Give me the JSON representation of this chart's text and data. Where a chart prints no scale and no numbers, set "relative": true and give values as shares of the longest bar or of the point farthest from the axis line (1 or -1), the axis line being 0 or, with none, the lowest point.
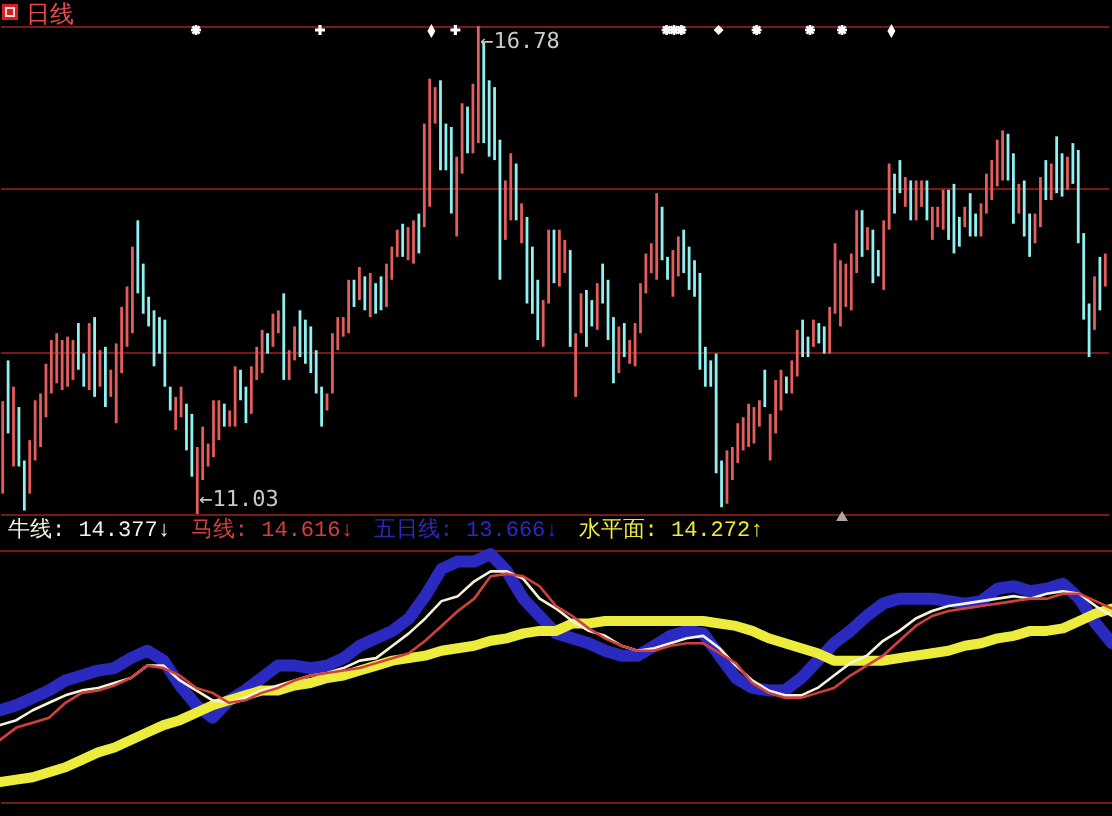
{
  "chart_data": [
    {
      "type": "candlestick",
      "title": "日线",
      "categories": [
        null,
        null,
        null,
        null,
        null,
        null,
        null,
        null,
        null,
        null,
        null,
        null,
        null,
        null,
        null,
        null,
        null,
        null,
        null,
        null,
        null,
        null,
        null,
        null,
        null,
        null,
        null,
        null,
        null,
        null,
        null,
        null,
        null,
        null,
        null,
        null,
        null,
        null,
        null,
        null,
        null,
        null,
        null,
        null,
        null,
        null,
        null,
        null,
        null,
        null,
        null,
        null,
        null,
        null,
        null,
        null,
        null,
        null,
        null,
        null,
        null,
        null,
        null,
        null,
        null,
        null,
        null,
        null,
        null,
        null,
        null,
        null,
        null,
        null,
        null,
        null,
        null,
        null,
        null,
        null,
        null,
        null,
        null,
        null,
        null,
        null,
        null,
        null,
        null,
        null,
        null,
        null,
        null,
        null,
        null,
        null,
        null,
        null,
        null,
        null,
        null,
        null,
        null,
        null,
        null,
        null,
        null,
        null,
        null,
        null,
        null,
        null,
        null,
        null,
        null,
        null,
        null,
        null,
        null,
        null,
        null,
        null,
        null,
        null,
        null,
        null,
        null,
        null,
        null,
        null,
        null,
        null,
        null,
        null,
        null,
        null,
        null,
        null,
        null,
        null,
        null,
        null,
        null,
        null,
        null,
        null,
        null,
        null,
        null,
        null,
        null,
        null,
        null,
        null,
        null,
        null,
        null,
        null,
        null,
        null,
        null,
        null,
        null,
        null,
        null,
        null,
        null,
        null,
        null,
        null,
        null,
        null,
        null,
        null,
        null,
        null,
        null,
        null,
        null,
        null,
        null,
        null,
        null,
        null,
        null,
        null,
        null,
        null,
        null,
        null,
        null,
        null,
        null,
        null,
        null,
        null,
        null,
        null,
        null,
        null,
        null,
        null,
        null,
        null,
        null
      ],
      "ohlc": [
        [
          11.27,
          12.36,
          11.27,
          12.36
        ],
        [
          12.84,
          12.84,
          11.98,
          11.98
        ],
        [
          11.59,
          12.53,
          11.59,
          12.53
        ],
        [
          12.29,
          12.29,
          11.59,
          11.59
        ],
        [
          11.66,
          11.66,
          11.07,
          11.07
        ],
        [
          11.27,
          11.9,
          11.27,
          11.9
        ],
        [
          11.66,
          12.37,
          11.66,
          12.37
        ],
        [
          11.82,
          12.45,
          11.82,
          12.45
        ],
        [
          12.17,
          12.8,
          12.17,
          12.8
        ],
        [
          12.45,
          13.08,
          12.45,
          13.08
        ],
        [
          12.57,
          13.16,
          12.57,
          13.16
        ],
        [
          12.49,
          13.08,
          12.49,
          13.08
        ],
        [
          12.53,
          13.12,
          12.53,
          13.12
        ],
        [
          12.61,
          13.08,
          12.61,
          13.08
        ],
        [
          13.28,
          13.28,
          12.73,
          12.73
        ],
        [
          12.92,
          12.92,
          12.53,
          12.53
        ],
        [
          12.49,
          13.28,
          12.49,
          13.28
        ],
        [
          13.35,
          13.35,
          12.41,
          12.41
        ],
        [
          12.53,
          12.96,
          12.53,
          12.96
        ],
        [
          13.0,
          13.0,
          12.29,
          12.29
        ],
        [
          12.41,
          12.73,
          12.41,
          12.73
        ],
        [
          12.1,
          13.04,
          12.1,
          13.04
        ],
        [
          12.69,
          13.47,
          12.69,
          13.47
        ],
        [
          13.0,
          13.71,
          13.0,
          13.71
        ],
        [
          13.16,
          14.18,
          13.16,
          14.18
        ],
        [
          14.49,
          14.49,
          13.63,
          13.63
        ],
        [
          13.98,
          13.98,
          13.39,
          13.39
        ],
        [
          13.59,
          13.59,
          13.24,
          13.24
        ],
        [
          13.43,
          13.43,
          12.77,
          12.77
        ],
        [
          13.35,
          13.35,
          12.92,
          12.92
        ],
        [
          13.32,
          13.32,
          12.53,
          12.53
        ],
        [
          12.53,
          12.53,
          12.25,
          12.25
        ],
        [
          12.02,
          12.41,
          12.02,
          12.41
        ],
        [
          12.17,
          12.53,
          12.17,
          12.53
        ],
        [
          12.33,
          12.33,
          11.78,
          11.78
        ],
        [
          12.21,
          12.21,
          11.47,
          11.47
        ],
        [
          11.03,
          11.82,
          11.03,
          11.82
        ],
        [
          11.43,
          12.06,
          11.43,
          12.06
        ],
        [
          11.59,
          11.86,
          11.59,
          11.86
        ],
        [
          11.7,
          12.37,
          11.7,
          12.37
        ],
        [
          11.9,
          12.37,
          11.9,
          12.37
        ],
        [
          12.33,
          12.33,
          12.06,
          12.06
        ],
        [
          12.06,
          12.25,
          12.06,
          12.25
        ],
        [
          12.06,
          12.77,
          12.06,
          12.77
        ],
        [
          12.73,
          12.73,
          12.37,
          12.37
        ],
        [
          12.53,
          12.53,
          12.1,
          12.1
        ],
        [
          12.21,
          12.77,
          12.21,
          12.77
        ],
        [
          12.61,
          13.0,
          12.61,
          13.0
        ],
        [
          12.69,
          13.2,
          12.69,
          13.2
        ],
        [
          13.16,
          13.16,
          12.92,
          12.92
        ],
        [
          13.0,
          13.39,
          13.0,
          13.39
        ],
        [
          13.16,
          13.43,
          13.16,
          13.43
        ],
        [
          13.63,
          13.63,
          12.61,
          12.61
        ],
        [
          12.61,
          12.96,
          12.61,
          12.96
        ],
        [
          12.84,
          13.24,
          12.84,
          13.24
        ],
        [
          13.43,
          13.43,
          12.88,
          12.88
        ],
        [
          13.32,
          13.32,
          12.8,
          12.8
        ],
        [
          13.24,
          13.24,
          12.69,
          12.69
        ],
        [
          12.96,
          12.96,
          12.45,
          12.45
        ],
        [
          12.53,
          12.53,
          12.06,
          12.06
        ],
        [
          12.25,
          12.45,
          12.25,
          12.45
        ],
        [
          12.45,
          13.16,
          12.45,
          13.16
        ],
        [
          12.96,
          13.35,
          12.96,
          13.35
        ],
        [
          13.12,
          13.35,
          13.12,
          13.35
        ],
        [
          13.16,
          13.79,
          13.16,
          13.79
        ],
        [
          13.79,
          13.79,
          13.47,
          13.47
        ],
        [
          13.55,
          13.94,
          13.55,
          13.94
        ],
        [
          13.83,
          13.83,
          13.43,
          13.43
        ],
        [
          13.35,
          13.87,
          13.35,
          13.87
        ],
        [
          13.75,
          13.75,
          13.39,
          13.39
        ],
        [
          13.83,
          13.83,
          13.43,
          13.43
        ],
        [
          13.47,
          13.98,
          13.47,
          13.98
        ],
        [
          13.79,
          14.18,
          13.79,
          14.18
        ],
        [
          14.06,
          14.38,
          14.06,
          14.38
        ],
        [
          14.45,
          14.45,
          14.06,
          14.06
        ],
        [
          14.02,
          14.41,
          14.02,
          14.41
        ],
        [
          13.98,
          14.49,
          13.98,
          14.49
        ],
        [
          14.57,
          14.57,
          14.1,
          14.1
        ],
        [
          14.41,
          15.63,
          14.41,
          15.63
        ],
        [
          14.65,
          16.16,
          14.65,
          16.16
        ],
        [
          15.63,
          16.06,
          15.63,
          16.06
        ],
        [
          16.14,
          16.14,
          15.08,
          15.08
        ],
        [
          15.63,
          15.63,
          15.08,
          15.08
        ],
        [
          15.59,
          15.59,
          14.57,
          14.57
        ],
        [
          14.3,
          15.24,
          14.3,
          15.24
        ],
        [
          15.04,
          15.87,
          15.04,
          15.87
        ],
        [
          15.83,
          15.83,
          15.28,
          15.28
        ],
        [
          15.28,
          16.1,
          15.28,
          16.1
        ],
        [
          15.4,
          16.78,
          15.4,
          16.78
        ],
        [
          16.58,
          16.58,
          15.4,
          15.4
        ],
        [
          16.14,
          16.14,
          15.24,
          15.24
        ],
        [
          16.06,
          16.06,
          15.2,
          15.2
        ],
        [
          15.44,
          15.44,
          13.79,
          13.79
        ],
        [
          14.26,
          14.96,
          14.26,
          14.96
        ],
        [
          14.49,
          15.28,
          14.49,
          15.28
        ],
        [
          15.16,
          15.16,
          14.49,
          14.49
        ],
        [
          14.22,
          14.69,
          14.22,
          14.69
        ],
        [
          14.53,
          14.53,
          13.51,
          13.51
        ],
        [
          14.18,
          14.18,
          13.39,
          13.39
        ],
        [
          13.79,
          13.79,
          13.08,
          13.08
        ],
        [
          13.0,
          13.55,
          13.0,
          13.55
        ],
        [
          13.51,
          14.38,
          13.51,
          14.38
        ],
        [
          14.38,
          14.38,
          13.75,
          13.75
        ],
        [
          13.71,
          14.38,
          13.71,
          14.38
        ],
        [
          13.87,
          14.26,
          13.87,
          14.26
        ],
        [
          14.14,
          14.14,
          13.0,
          13.0
        ],
        [
          12.41,
          13.16,
          12.41,
          13.16
        ],
        [
          13.16,
          13.63,
          13.16,
          13.63
        ],
        [
          13.67,
          13.67,
          13.0,
          13.0
        ],
        [
          13.55,
          13.55,
          13.24,
          13.24
        ],
        [
          13.2,
          13.75,
          13.2,
          13.75
        ],
        [
          13.98,
          13.98,
          13.51,
          13.51
        ],
        [
          13.79,
          13.79,
          13.08,
          13.08
        ],
        [
          13.35,
          13.35,
          12.57,
          12.57
        ],
        [
          12.69,
          13.24,
          12.69,
          13.24
        ],
        [
          13.28,
          13.28,
          12.88,
          12.88
        ],
        [
          12.8,
          13.08,
          12.8,
          13.08
        ],
        [
          12.77,
          13.28,
          12.77,
          13.28
        ],
        [
          13.16,
          13.75,
          13.16,
          13.75
        ],
        [
          13.63,
          14.1,
          13.63,
          14.1
        ],
        [
          13.87,
          14.22,
          13.87,
          14.22
        ],
        [
          13.79,
          14.81,
          13.79,
          14.81
        ],
        [
          14.65,
          14.65,
          14.02,
          14.02
        ],
        [
          14.06,
          14.06,
          13.79,
          13.79
        ],
        [
          13.59,
          14.14,
          13.59,
          14.14
        ],
        [
          13.83,
          14.3,
          13.83,
          14.3
        ],
        [
          14.38,
          14.38,
          13.87,
          13.87
        ],
        [
          14.18,
          14.18,
          13.67,
          13.67
        ],
        [
          14.02,
          14.02,
          13.59,
          13.59
        ],
        [
          13.87,
          13.87,
          12.73,
          12.73
        ],
        [
          13.0,
          13.0,
          12.53,
          12.53
        ],
        [
          12.84,
          12.84,
          12.53,
          12.53
        ],
        [
          12.92,
          12.92,
          11.51,
          11.51
        ],
        [
          11.66,
          11.66,
          11.11,
          11.11
        ],
        [
          11.15,
          11.78,
          11.15,
          11.78
        ],
        [
          11.43,
          11.82,
          11.43,
          11.82
        ],
        [
          11.63,
          12.1,
          11.63,
          12.1
        ],
        [
          11.78,
          12.17,
          11.78,
          12.17
        ],
        [
          11.82,
          12.33,
          11.82,
          12.33
        ],
        [
          11.86,
          12.29,
          11.86,
          12.29
        ],
        [
          12.06,
          12.37,
          12.06,
          12.37
        ],
        [
          12.73,
          12.73,
          12.29,
          12.29
        ],
        [
          11.66,
          12.21,
          11.66,
          12.21
        ],
        [
          11.98,
          12.61,
          11.98,
          12.61
        ],
        [
          12.25,
          12.73,
          12.25,
          12.73
        ],
        [
          12.65,
          12.65,
          12.45,
          12.45
        ],
        [
          12.45,
          12.84,
          12.45,
          12.84
        ],
        [
          12.65,
          13.2,
          12.65,
          13.2
        ],
        [
          13.32,
          13.32,
          12.88,
          12.88
        ],
        [
          13.12,
          13.12,
          12.88,
          12.88
        ],
        [
          13.0,
          13.32,
          13.0,
          13.32
        ],
        [
          13.28,
          13.28,
          13.04,
          13.04
        ],
        [
          13.24,
          13.24,
          12.92,
          12.92
        ],
        [
          12.92,
          13.47,
          12.92,
          13.47
        ],
        [
          13.39,
          14.22,
          13.39,
          14.22
        ],
        [
          13.24,
          14.02,
          13.24,
          14.02
        ],
        [
          13.47,
          13.98,
          13.47,
          13.98
        ],
        [
          13.43,
          14.1,
          13.43,
          14.1
        ],
        [
          13.87,
          14.61,
          13.87,
          14.61
        ],
        [
          14.61,
          14.61,
          14.06,
          14.06
        ],
        [
          14.14,
          14.41,
          14.14,
          14.41
        ],
        [
          14.38,
          14.38,
          13.75,
          13.75
        ],
        [
          14.14,
          14.14,
          13.83,
          13.83
        ],
        [
          13.67,
          14.49,
          13.67,
          14.49
        ],
        [
          14.38,
          15.16,
          14.38,
          15.16
        ],
        [
          15.04,
          15.04,
          14.57,
          14.57
        ],
        [
          15.2,
          15.2,
          14.81,
          14.81
        ],
        [
          14.65,
          15.0,
          14.65,
          15.0
        ],
        [
          14.96,
          14.96,
          14.49,
          14.49
        ],
        [
          14.49,
          14.96,
          14.49,
          14.96
        ],
        [
          14.65,
          14.96,
          14.65,
          14.96
        ],
        [
          14.96,
          14.96,
          14.49,
          14.49
        ],
        [
          14.26,
          14.65,
          14.26,
          14.65
        ],
        [
          14.41,
          14.65,
          14.41,
          14.65
        ],
        [
          14.38,
          14.85,
          14.38,
          14.85
        ],
        [
          14.85,
          14.85,
          14.26,
          14.26
        ],
        [
          14.92,
          14.92,
          14.1,
          14.1
        ],
        [
          14.53,
          14.53,
          14.18,
          14.18
        ],
        [
          14.41,
          14.65,
          14.41,
          14.65
        ],
        [
          14.81,
          14.81,
          14.3,
          14.3
        ],
        [
          14.57,
          14.57,
          14.3,
          14.3
        ],
        [
          14.3,
          14.69,
          14.3,
          14.69
        ],
        [
          14.57,
          15.04,
          14.57,
          15.04
        ],
        [
          14.73,
          15.2,
          14.73,
          15.2
        ],
        [
          14.89,
          15.44,
          14.89,
          15.44
        ],
        [
          14.96,
          15.55,
          14.96,
          15.55
        ],
        [
          15.51,
          15.51,
          14.96,
          14.96
        ],
        [
          15.28,
          15.28,
          14.45,
          14.45
        ],
        [
          14.57,
          14.92,
          14.57,
          14.92
        ],
        [
          14.96,
          14.96,
          14.3,
          14.3
        ],
        [
          14.57,
          14.57,
          14.06,
          14.06
        ],
        [
          14.22,
          14.57,
          14.22,
          14.57
        ],
        [
          14.41,
          15.0,
          14.41,
          15.0
        ],
        [
          15.2,
          15.2,
          14.73,
          14.73
        ],
        [
          14.73,
          15.16,
          14.73,
          15.16
        ],
        [
          15.48,
          15.48,
          14.81,
          14.81
        ],
        [
          15.28,
          15.28,
          14.77,
          14.77
        ],
        [
          14.85,
          15.24,
          14.85,
          15.24
        ],
        [
          15.4,
          15.4,
          14.92,
          14.92
        ],
        [
          15.32,
          15.32,
          14.22,
          14.22
        ],
        [
          14.34,
          14.34,
          13.32,
          13.32
        ],
        [
          13.51,
          13.51,
          12.88,
          12.88
        ],
        [
          13.2,
          13.83,
          13.2,
          13.83
        ],
        [
          14.06,
          14.06,
          13.43,
          13.43
        ],
        [
          13.71,
          14.1,
          13.71,
          14.1
        ]
      ],
      "colors": [
        "#e35d5d",
        "#8ef2f2",
        "#e35d5d",
        "#8ef2f2",
        "#8ef2f2",
        "#e35d5d",
        "#e35d5d",
        "#e35d5d",
        "#e35d5d",
        "#e35d5d",
        "#e35d5d",
        "#e35d5d",
        "#e35d5d",
        "#e35d5d",
        "#8ef2f2",
        "#8ef2f2",
        "#e35d5d",
        "#8ef2f2",
        "#e35d5d",
        "#8ef2f2",
        "#e35d5d",
        "#e35d5d",
        "#e35d5d",
        "#e35d5d",
        "#e35d5d",
        "#8ef2f2",
        "#8ef2f2",
        "#8ef2f2",
        "#8ef2f2",
        "#8ef2f2",
        "#8ef2f2",
        "#8ef2f2",
        "#e35d5d",
        "#e35d5d",
        "#8ef2f2",
        "#8ef2f2",
        "#e35d5d",
        "#e35d5d",
        "#e35d5d",
        "#e35d5d",
        "#e35d5d",
        "#8ef2f2",
        "#e35d5d",
        "#e35d5d",
        "#8ef2f2",
        "#8ef2f2",
        "#e35d5d",
        "#e35d5d",
        "#e35d5d",
        "#8ef2f2",
        "#e35d5d",
        "#e35d5d",
        "#8ef2f2",
        "#e35d5d",
        "#e35d5d",
        "#8ef2f2",
        "#8ef2f2",
        "#8ef2f2",
        "#8ef2f2",
        "#8ef2f2",
        "#e35d5d",
        "#e35d5d",
        "#e35d5d",
        "#e35d5d",
        "#e35d5d",
        "#8ef2f2",
        "#e35d5d",
        "#8ef2f2",
        "#e35d5d",
        "#8ef2f2",
        "#8ef2f2",
        "#e35d5d",
        "#e35d5d",
        "#e35d5d",
        "#8ef2f2",
        "#e35d5d",
        "#e35d5d",
        "#8ef2f2",
        "#e35d5d",
        "#e35d5d",
        "#e35d5d",
        "#8ef2f2",
        "#8ef2f2",
        "#8ef2f2",
        "#e35d5d",
        "#e35d5d",
        "#8ef2f2",
        "#e35d5d",
        "#e35d5d",
        "#8ef2f2",
        "#8ef2f2",
        "#8ef2f2",
        "#8ef2f2",
        "#e35d5d",
        "#e35d5d",
        "#8ef2f2",
        "#e35d5d",
        "#8ef2f2",
        "#8ef2f2",
        "#8ef2f2",
        "#e35d5d",
        "#e35d5d",
        "#8ef2f2",
        "#e35d5d",
        "#e35d5d",
        "#8ef2f2",
        "#e35d5d",
        "#e35d5d",
        "#8ef2f2",
        "#8ef2f2",
        "#e35d5d",
        "#8ef2f2",
        "#8ef2f2",
        "#8ef2f2",
        "#e35d5d",
        "#8ef2f2",
        "#e35d5d",
        "#e35d5d",
        "#e35d5d",
        "#e35d5d",
        "#e35d5d",
        "#e35d5d",
        "#8ef2f2",
        "#8ef2f2",
        "#e35d5d",
        "#e35d5d",
        "#8ef2f2",
        "#8ef2f2",
        "#8ef2f2",
        "#8ef2f2",
        "#8ef2f2",
        "#8ef2f2",
        "#8ef2f2",
        "#8ef2f2",
        "#e35d5d",
        "#e35d5d",
        "#e35d5d",
        "#e35d5d",
        "#e35d5d",
        "#e35d5d",
        "#e35d5d",
        "#8ef2f2",
        "#e35d5d",
        "#e35d5d",
        "#e35d5d",
        "#8ef2f2",
        "#e35d5d",
        "#e35d5d",
        "#8ef2f2",
        "#8ef2f2",
        "#e35d5d",
        "#8ef2f2",
        "#8ef2f2",
        "#e35d5d",
        "#e35d5d",
        "#e35d5d",
        "#e35d5d",
        "#e35d5d",
        "#e35d5d",
        "#8ef2f2",
        "#e35d5d",
        "#8ef2f2",
        "#8ef2f2",
        "#e35d5d",
        "#e35d5d",
        "#8ef2f2",
        "#8ef2f2",
        "#e35d5d",
        "#8ef2f2",
        "#e35d5d",
        "#e35d5d",
        "#8ef2f2",
        "#e35d5d",
        "#e35d5d",
        "#e35d5d",
        "#8ef2f2",
        "#8ef2f2",
        "#8ef2f2",
        "#e35d5d",
        "#8ef2f2",
        "#8ef2f2",
        "#e35d5d",
        "#e35d5d",
        "#e35d5d",
        "#e35d5d",
        "#e35d5d",
        "#8ef2f2",
        "#8ef2f2",
        "#e35d5d",
        "#8ef2f2",
        "#8ef2f2",
        "#e35d5d",
        "#e35d5d",
        "#8ef2f2",
        "#e35d5d",
        "#8ef2f2",
        "#8ef2f2",
        "#e35d5d",
        "#8ef2f2",
        "#8ef2f2",
        "#8ef2f2",
        "#8ef2f2",
        "#e35d5d",
        "#8ef2f2",
        "#e35d5d"
      ],
      "ylim": [
        11.03,
        16.78
      ],
      "yticks": [
        {
          "value": 11.03,
          "label": null
        },
        {
          "value": 12.95,
          "label": null
        },
        {
          "value": 14.86,
          "label": null
        },
        {
          "value": 16.78,
          "label": null
        }
      ],
      "grid": "y",
      "annotations": [
        "←16.78",
        "←11.03"
      ]
    },
    {
      "type": "line",
      "relative": true,
      "legend": "top",
      "categories": [
        null,
        null,
        null,
        null,
        null,
        null,
        null,
        null,
        null,
        null,
        null,
        null,
        null,
        null,
        null,
        null,
        null,
        null,
        null,
        null,
        null,
        null,
        null,
        null,
        null,
        null,
        null,
        null,
        null,
        null,
        null,
        null,
        null,
        null,
        null,
        null,
        null,
        null,
        null,
        null,
        null,
        null,
        null,
        null,
        null,
        null,
        null,
        null,
        null,
        null,
        null,
        null,
        null,
        null,
        null,
        null,
        null,
        null,
        null,
        null,
        null,
        null,
        null,
        null,
        null,
        null,
        null,
        null,
        null
      ],
      "series": [
        {
          "name": "牛线: 14.377↓",
          "color": "#f4f4dc",
          "values": [
            0.31,
            0.33,
            0.37,
            0.4,
            0.43,
            0.45,
            0.46,
            0.48,
            0.5,
            0.55,
            0.55,
            0.49,
            0.45,
            0.41,
            0.4,
            0.42,
            0.45,
            0.47,
            0.49,
            0.51,
            0.52,
            0.54,
            0.57,
            0.58,
            0.63,
            0.68,
            0.74,
            0.81,
            0.83,
            0.89,
            0.93,
            0.93,
            0.9,
            0.82,
            0.78,
            0.73,
            0.69,
            0.67,
            0.63,
            0.61,
            0.62,
            0.64,
            0.66,
            0.67,
            0.62,
            0.55,
            0.49,
            0.45,
            0.43,
            0.43,
            0.46,
            0.51,
            0.56,
            0.59,
            0.65,
            0.69,
            0.74,
            0.77,
            0.79,
            0.8,
            0.81,
            0.82,
            0.83,
            0.82,
            0.84,
            0.85,
            0.84,
            0.79,
            0.75
          ]
        },
        {
          "name": "马线: 14.616↓",
          "color": "#d2403c",
          "values": [
            0.25,
            0.3,
            0.32,
            0.34,
            0.4,
            0.44,
            0.45,
            0.47,
            0.5,
            0.55,
            0.54,
            0.51,
            0.46,
            0.44,
            0.4,
            0.41,
            0.44,
            0.46,
            0.49,
            0.51,
            0.52,
            0.53,
            0.54,
            0.56,
            0.58,
            0.6,
            0.65,
            0.71,
            0.77,
            0.82,
            0.91,
            0.92,
            0.91,
            0.87,
            0.79,
            0.75,
            0.7,
            0.66,
            0.63,
            0.61,
            0.61,
            0.63,
            0.64,
            0.64,
            0.6,
            0.56,
            0.48,
            0.44,
            0.42,
            0.42,
            0.44,
            0.46,
            0.51,
            0.55,
            0.59,
            0.65,
            0.71,
            0.75,
            0.77,
            0.78,
            0.79,
            0.8,
            0.81,
            0.82,
            0.82,
            0.84,
            0.84,
            0.81,
            0.78
          ]
        },
        {
          "name": "五日线: 13.666↓",
          "color": "#2a2ac0",
          "values": [
            0.37,
            0.39,
            0.42,
            0.45,
            0.49,
            0.51,
            0.53,
            0.54,
            0.58,
            0.61,
            0.57,
            0.47,
            0.39,
            0.34,
            0.41,
            0.45,
            0.5,
            0.55,
            0.55,
            0.54,
            0.55,
            0.58,
            0.63,
            0.66,
            0.69,
            0.74,
            0.83,
            0.94,
            0.97,
            0.97,
            1.0,
            0.93,
            0.82,
            0.75,
            0.68,
            0.66,
            0.64,
            0.61,
            0.59,
            0.59,
            0.63,
            0.67,
            0.69,
            0.68,
            0.59,
            0.5,
            0.46,
            0.45,
            0.45,
            0.5,
            0.57,
            0.64,
            0.69,
            0.75,
            0.8,
            0.82,
            0.82,
            0.82,
            0.81,
            0.8,
            0.81,
            0.86,
            0.87,
            0.85,
            0.86,
            0.88,
            0.82,
            0.72,
            0.64
          ]
        },
        {
          "name": "水平面: 14.272↑",
          "color": "#ecec3c",
          "values": [
            0.08,
            0.09,
            0.1,
            0.12,
            0.14,
            0.17,
            0.2,
            0.22,
            0.25,
            0.28,
            0.31,
            0.33,
            0.36,
            0.39,
            0.41,
            0.43,
            0.45,
            0.45,
            0.47,
            0.48,
            0.5,
            0.51,
            0.53,
            0.55,
            0.57,
            0.58,
            0.59,
            0.61,
            0.62,
            0.63,
            0.65,
            0.66,
            0.68,
            0.69,
            0.69,
            0.72,
            0.72,
            0.73,
            0.73,
            0.73,
            0.73,
            0.73,
            0.73,
            0.73,
            0.72,
            0.71,
            0.69,
            0.66,
            0.64,
            0.62,
            0.6,
            0.57,
            0.57,
            0.57,
            0.57,
            0.58,
            0.59,
            0.6,
            0.61,
            0.63,
            0.64,
            0.66,
            0.67,
            0.69,
            0.69,
            0.7,
            0.73,
            0.76,
            0.78
          ]
        }
      ]
    }
  ]
}
